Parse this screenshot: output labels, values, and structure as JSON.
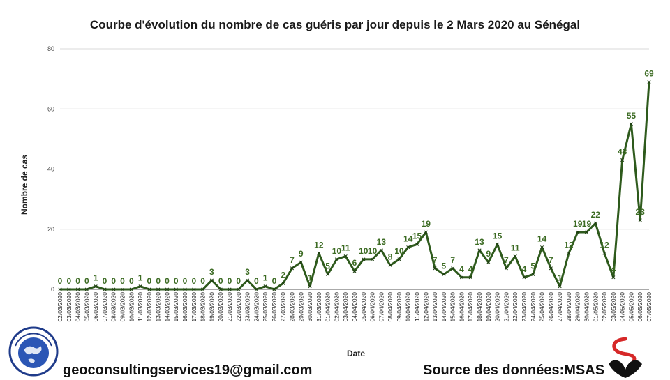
{
  "chart_data": {
    "type": "line",
    "title": "Courbe d'évolution du nombre de cas guéris par jour depuis le 2 Mars 2020 au Sénégal",
    "xlabel": "Date",
    "ylabel": "Nombre de cas",
    "ylim": [
      0,
      80
    ],
    "yticks": [
      0,
      20,
      40,
      60,
      80
    ],
    "grid": true,
    "line_color": "#2e5a1c",
    "label_color": "#3c6b23",
    "categories": [
      "02/03/2020",
      "03/03/2020",
      "04/03/2020",
      "05/03/2020",
      "06/03/2020",
      "07/03/2020",
      "08/03/2020",
      "09/03/2020",
      "10/03/2020",
      "11/03/2020",
      "12/03/2020",
      "13/03/2020",
      "14/03/2020",
      "15/03/2020",
      "16/03/2020",
      "17/03/2020",
      "18/03/2020",
      "19/03/2020",
      "20/03/2020",
      "21/03/2020",
      "22/03/2020",
      "23/03/2020",
      "24/03/2020",
      "25/03/2020",
      "26/03/2020",
      "27/03/2020",
      "28/03/2020",
      "29/03/2020",
      "30/03/2020",
      "31/03/2020",
      "01/04/2020",
      "02/04/2020",
      "03/04/2020",
      "04/04/2020",
      "05/04/2020",
      "06/04/2020",
      "07/04/2020",
      "08/04/2020",
      "09/04/2020",
      "10/04/2020",
      "11/04/2020",
      "12/04/2020",
      "13/04/2020",
      "14/04/2020",
      "15/04/2020",
      "16/04/2020",
      "17/04/2020",
      "18/04/2020",
      "19/04/2020",
      "20/04/2020",
      "21/04/2020",
      "22/04/2020",
      "23/04/2020",
      "24/04/2020",
      "25/04/2020",
      "26/04/2020",
      "27/04/2020",
      "28/04/2020",
      "29/04/2020",
      "30/04/2020",
      "01/05/2020",
      "02/05/2020",
      "03/05/2020",
      "04/05/2020",
      "05/05/2020",
      "06/05/2020",
      "07/05/2020"
    ],
    "values": [
      0,
      0,
      0,
      0,
      1,
      0,
      0,
      0,
      0,
      1,
      0,
      0,
      0,
      0,
      0,
      0,
      0,
      3,
      0,
      0,
      0,
      3,
      0,
      1,
      0,
      2,
      7,
      9,
      1,
      12,
      5,
      10,
      11,
      6,
      10,
      10,
      13,
      8,
      10,
      14,
      15,
      19,
      7,
      5,
      7,
      4,
      4,
      13,
      9,
      15,
      7,
      11,
      4,
      5,
      14,
      7,
      1,
      12,
      19,
      19,
      22,
      12,
      4,
      43,
      55,
      23,
      69
    ]
  },
  "footer": {
    "email": "geoconsultingservices19@gmail.com",
    "source": "Source des données:MSAS"
  }
}
